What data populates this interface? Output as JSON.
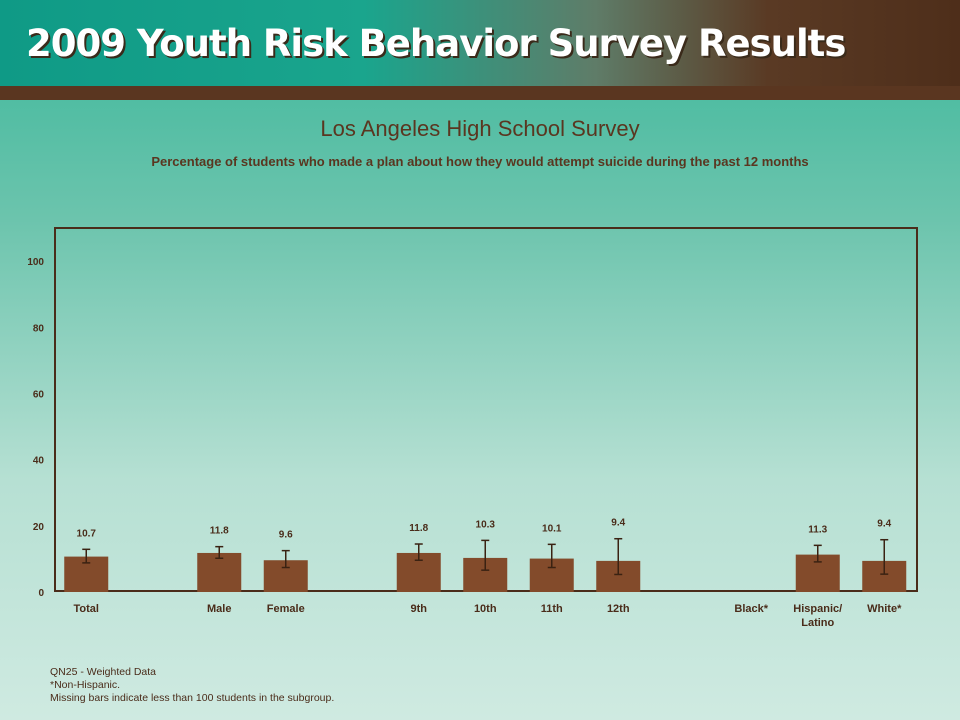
{
  "header": {
    "title": "2009 Youth Risk Behavior Survey Results"
  },
  "chart_data": {
    "type": "bar",
    "title": "Los Angeles High School Survey",
    "subtitle": "Percentage of students who made a plan about how they would attempt suicide during the past 12 months",
    "categories": [
      "Total",
      "Male",
      "Female",
      "9th",
      "10th",
      "11th",
      "12th",
      "Black*",
      "Hispanic/\nLatino",
      "White*"
    ],
    "values": [
      10.7,
      11.8,
      9.6,
      11.8,
      10.3,
      10.1,
      9.4,
      null,
      11.3,
      9.4
    ],
    "error_low": [
      8.8,
      10.2,
      7.4,
      9.6,
      6.6,
      7.4,
      5.3,
      null,
      9.1,
      5.4
    ],
    "error_high": [
      12.9,
      13.7,
      12.5,
      14.5,
      15.6,
      14.4,
      16.1,
      null,
      14.1,
      15.8
    ],
    "ylim": [
      0,
      110
    ],
    "yticks": [
      0,
      20,
      40,
      60,
      80,
      100
    ],
    "color": "#834b2b",
    "grid": false
  },
  "footer": {
    "line1": "QN25 - Weighted Data",
    "line2": "*Non-Hispanic.",
    "line3": "Missing bars indicate less than 100 students in the subgroup."
  }
}
